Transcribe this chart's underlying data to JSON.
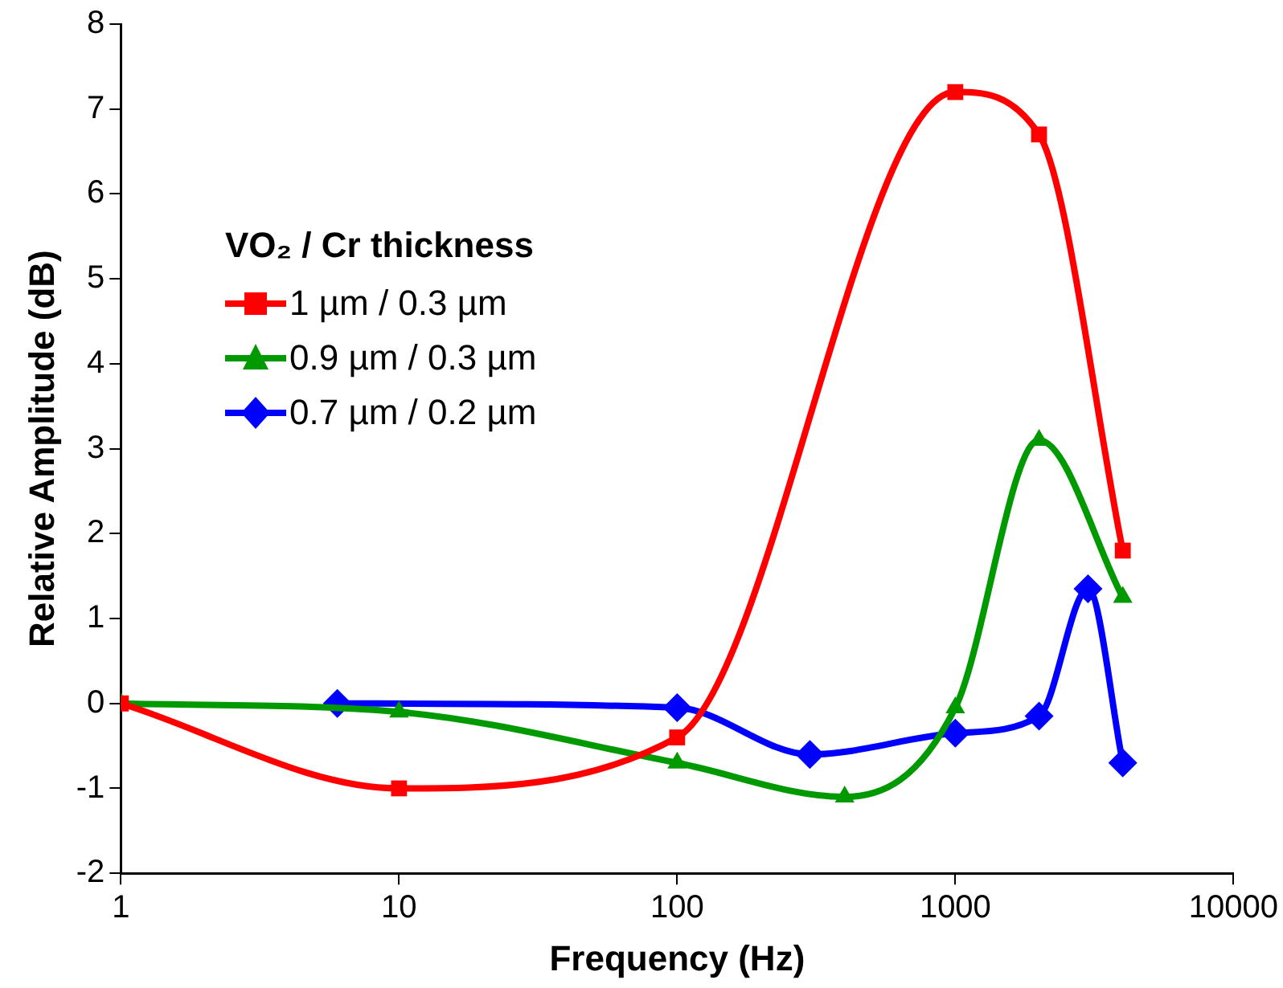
{
  "chart_data": {
    "type": "line",
    "xlabel": "Frequency (Hz)",
    "ylabel": "Relative Amplitude (dB)",
    "legend_title": "VO₂ / Cr thickness",
    "legend": "left",
    "log": "x",
    "grid": false,
    "line_style": "solid",
    "xlim": [
      1,
      10000
    ],
    "xticks": [
      1,
      10,
      100,
      1000,
      10000
    ],
    "ylim": [
      -2,
      8
    ],
    "yticks": [
      -2,
      -1,
      0,
      1,
      2,
      3,
      4,
      5,
      6,
      7,
      8
    ],
    "series": [
      {
        "name": "1 µm / 0.3 µm",
        "color": "#ff0000",
        "marker": "square",
        "x": [
          1,
          10,
          100,
          1000,
          2000,
          4000
        ],
        "values": [
          0,
          -1.0,
          -0.4,
          7.2,
          6.7,
          1.8
        ]
      },
      {
        "name": "0.9 µm / 0.3 µm",
        "color": "#009900",
        "marker": "triangle",
        "x": [
          1,
          10,
          100,
          400,
          1000,
          2000,
          4000
        ],
        "values": [
          0,
          -0.1,
          -0.7,
          -1.1,
          -0.05,
          3.1,
          1.25
        ]
      },
      {
        "name": "0.7 µm / 0.2 µm",
        "color": "#0000ff",
        "marker": "diamond",
        "x": [
          6,
          100,
          300,
          1000,
          2000,
          3000,
          4000
        ],
        "values": [
          0,
          -0.05,
          -0.6,
          -0.35,
          -0.15,
          1.35,
          -0.7
        ]
      }
    ]
  }
}
